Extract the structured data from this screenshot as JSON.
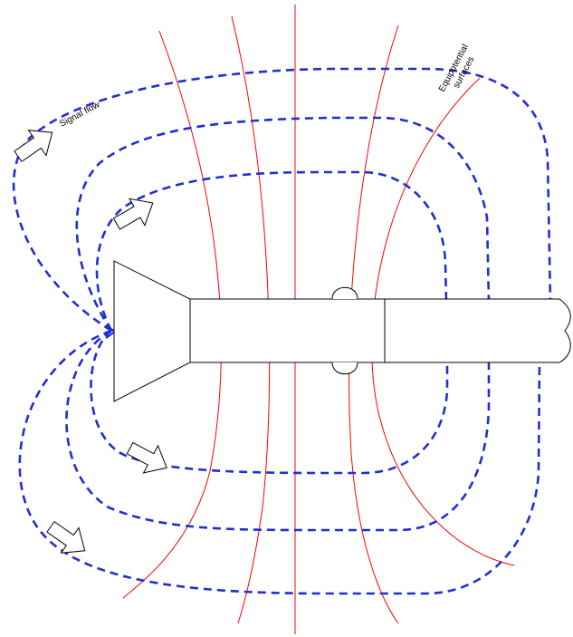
{
  "labels": {
    "signal_flow": "Signal flow",
    "equipotential_line1": "Equipotential",
    "equipotential_line2": "surfaces"
  },
  "colors": {
    "signal_flow_lines": "#1f2fd0",
    "equipotential_lines": "#ff0000",
    "outline": "#000000",
    "background": "#ffffff"
  },
  "icons": {
    "flow_arrow": "hollow-arrow-icon",
    "probe": "coax-probe-outline",
    "bulge": "connector-bump"
  }
}
